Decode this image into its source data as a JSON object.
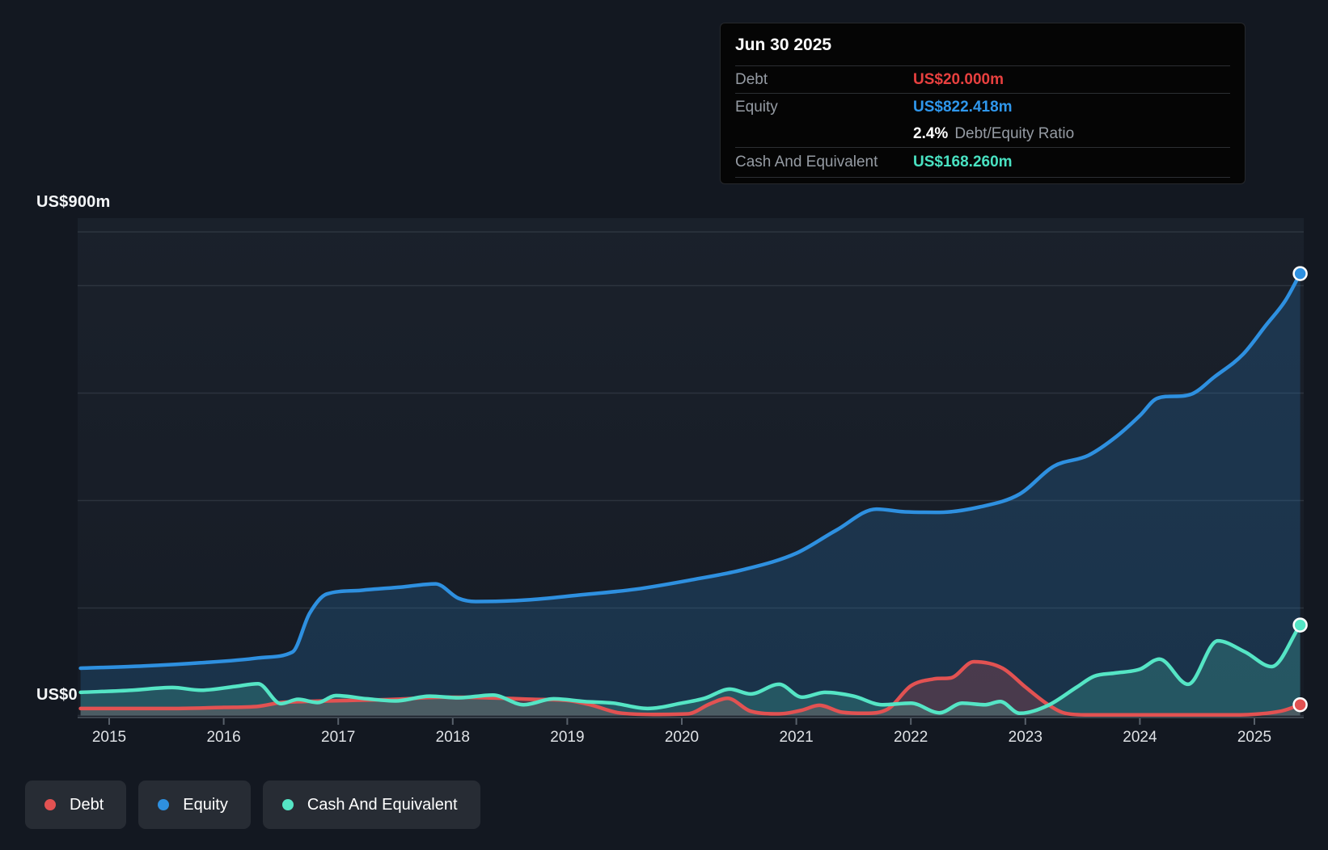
{
  "tooltip": {
    "date": "Jun 30 2025",
    "debt_label": "Debt",
    "debt_value": "US$20.000m",
    "equity_label": "Equity",
    "equity_value": "US$822.418m",
    "ratio_value": "2.4%",
    "ratio_label": "Debt/Equity Ratio",
    "cash_label": "Cash And Equivalent",
    "cash_value": "US$168.260m"
  },
  "y_axis": {
    "top_label": "US$900m",
    "bottom_label": "US$0"
  },
  "legend": {
    "items": [
      {
        "id": "debt",
        "label": "Debt",
        "color": "#e25252"
      },
      {
        "id": "equity",
        "label": "Equity",
        "color": "#2e90e0"
      },
      {
        "id": "cash",
        "label": "Cash And Equivalent",
        "color": "#55e5c5"
      }
    ]
  },
  "colors": {
    "background": "#131821",
    "panel_top": "rgba(145,175,205,0.060)",
    "panel_bottom": "rgba(145,175,205,0.022)",
    "grid": "rgba(140,152,164,0.17)",
    "axis": "#3d454f",
    "tick": "#59616b",
    "x_label": "#dfe2e6",
    "y_label": "#f4f6f8",
    "debt_value": "#e8403f",
    "equity_value": "#2f97ec",
    "cash_value": "#49e2c2",
    "dot_ring": "#ffffff"
  },
  "chart_data": {
    "type": "area",
    "x_range": [
      2014.75,
      2025.4
    ],
    "y_range": [
      0,
      900
    ],
    "y_unit": "US$ millions",
    "y_gridline_values": [
      0,
      200,
      400,
      600,
      800,
      900
    ],
    "year_ticks": [
      2015,
      2016,
      2017,
      2018,
      2019,
      2020,
      2021,
      2022,
      2023,
      2024,
      2025
    ],
    "grid_on": true,
    "legend_position": "bottom-left",
    "series": [
      {
        "id": "equity",
        "name": "Equity",
        "color": "#2e90e0",
        "fill_alpha": 0.2,
        "points": [
          [
            2014.75,
            88
          ],
          [
            2015.3,
            92
          ],
          [
            2015.8,
            98
          ],
          [
            2016.3,
            107
          ],
          [
            2016.6,
            118
          ],
          [
            2016.75,
            190
          ],
          [
            2016.9,
            226
          ],
          [
            2017.2,
            233
          ],
          [
            2017.55,
            239
          ],
          [
            2017.85,
            245
          ],
          [
            2018.05,
            218
          ],
          [
            2018.2,
            212
          ],
          [
            2018.65,
            215
          ],
          [
            2019.1,
            224
          ],
          [
            2019.6,
            235
          ],
          [
            2020.1,
            253
          ],
          [
            2020.55,
            272
          ],
          [
            2021.0,
            302
          ],
          [
            2021.35,
            345
          ],
          [
            2021.7,
            384
          ],
          [
            2021.95,
            379
          ],
          [
            2022.25,
            378
          ],
          [
            2022.6,
            388
          ],
          [
            2022.95,
            412
          ],
          [
            2023.25,
            464
          ],
          [
            2023.55,
            484
          ],
          [
            2023.8,
            520
          ],
          [
            2024.0,
            558
          ],
          [
            2024.15,
            590
          ],
          [
            2024.45,
            598
          ],
          [
            2024.65,
            630
          ],
          [
            2024.9,
            672
          ],
          [
            2025.1,
            726
          ],
          [
            2025.27,
            772
          ],
          [
            2025.4,
            822.418
          ]
        ]
      },
      {
        "id": "debt",
        "name": "Debt",
        "color": "#e25252",
        "fill_alpha": 0.24,
        "points": [
          [
            2014.75,
            13
          ],
          [
            2015.5,
            13
          ],
          [
            2016.0,
            15
          ],
          [
            2016.3,
            17
          ],
          [
            2016.5,
            24
          ],
          [
            2016.7,
            26
          ],
          [
            2017.1,
            28
          ],
          [
            2017.5,
            30
          ],
          [
            2017.9,
            34
          ],
          [
            2018.3,
            33
          ],
          [
            2018.7,
            30
          ],
          [
            2019.0,
            28
          ],
          [
            2019.2,
            20
          ],
          [
            2019.45,
            5
          ],
          [
            2019.75,
            2
          ],
          [
            2020.05,
            3
          ],
          [
            2020.25,
            22
          ],
          [
            2020.4,
            32
          ],
          [
            2020.6,
            8
          ],
          [
            2020.85,
            3
          ],
          [
            2021.05,
            10
          ],
          [
            2021.2,
            19
          ],
          [
            2021.4,
            6
          ],
          [
            2021.6,
            4
          ],
          [
            2021.8,
            12
          ],
          [
            2022.0,
            55
          ],
          [
            2022.2,
            68
          ],
          [
            2022.35,
            70
          ],
          [
            2022.55,
            100
          ],
          [
            2022.8,
            88
          ],
          [
            2023.0,
            53
          ],
          [
            2023.2,
            20
          ],
          [
            2023.35,
            4
          ],
          [
            2023.55,
            1
          ],
          [
            2024.2,
            1
          ],
          [
            2024.8,
            1
          ],
          [
            2025.05,
            3
          ],
          [
            2025.25,
            9
          ],
          [
            2025.4,
            20
          ]
        ]
      },
      {
        "id": "cash",
        "name": "Cash And Equivalent",
        "color": "#55e5c5",
        "fill_alpha": 0.2,
        "points": [
          [
            2014.75,
            43
          ],
          [
            2015.2,
            47
          ],
          [
            2015.55,
            52
          ],
          [
            2015.8,
            47
          ],
          [
            2016.1,
            54
          ],
          [
            2016.3,
            59
          ],
          [
            2016.5,
            22
          ],
          [
            2016.65,
            30
          ],
          [
            2016.82,
            24
          ],
          [
            2016.98,
            37
          ],
          [
            2017.25,
            31
          ],
          [
            2017.5,
            27
          ],
          [
            2017.8,
            36
          ],
          [
            2018.05,
            33
          ],
          [
            2018.35,
            38
          ],
          [
            2018.62,
            20
          ],
          [
            2018.88,
            31
          ],
          [
            2019.15,
            26
          ],
          [
            2019.4,
            23
          ],
          [
            2019.7,
            13
          ],
          [
            2020.0,
            23
          ],
          [
            2020.2,
            32
          ],
          [
            2020.42,
            49
          ],
          [
            2020.6,
            40
          ],
          [
            2020.85,
            58
          ],
          [
            2021.05,
            34
          ],
          [
            2021.25,
            43
          ],
          [
            2021.5,
            36
          ],
          [
            2021.75,
            20
          ],
          [
            2022.0,
            23
          ],
          [
            2022.25,
            5
          ],
          [
            2022.45,
            23
          ],
          [
            2022.65,
            20
          ],
          [
            2022.78,
            26
          ],
          [
            2022.95,
            4
          ],
          [
            2023.2,
            19
          ],
          [
            2023.45,
            53
          ],
          [
            2023.6,
            73
          ],
          [
            2023.78,
            79
          ],
          [
            2024.0,
            86
          ],
          [
            2024.17,
            105
          ],
          [
            2024.42,
            58
          ],
          [
            2024.68,
            139
          ],
          [
            2024.92,
            118
          ],
          [
            2025.15,
            91
          ],
          [
            2025.4,
            168.26
          ]
        ]
      }
    ],
    "last_point": {
      "date": "Jun 30 2025",
      "debt_m": 20.0,
      "equity_m": 822.418,
      "cash_m": 168.26,
      "debt_equity_ratio_pct": 2.4
    }
  }
}
